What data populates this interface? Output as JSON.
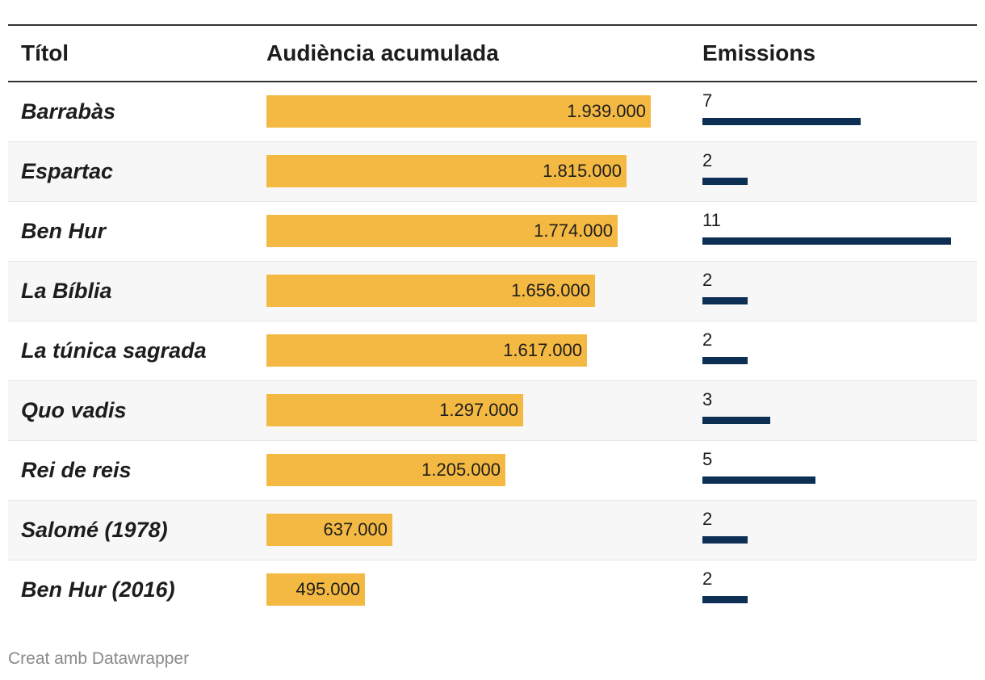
{
  "table": {
    "headers": {
      "title": "Títol",
      "audience": "Audiència acumulada",
      "broadcasts": "Emissions"
    },
    "audience_max": 1939000,
    "broadcasts_max": 11
  },
  "chart_data": {
    "type": "table",
    "columns": [
      "Títol",
      "Audiència acumulada",
      "Emissions"
    ],
    "rows": [
      {
        "title": "Barrabàs",
        "audience": 1939000,
        "audience_label": "1.939.000",
        "broadcasts": 7,
        "broadcasts_label": "7"
      },
      {
        "title": "Espartac",
        "audience": 1815000,
        "audience_label": "1.815.000",
        "broadcasts": 2,
        "broadcasts_label": "2"
      },
      {
        "title": "Ben Hur",
        "audience": 1774000,
        "audience_label": "1.774.000",
        "broadcasts": 11,
        "broadcasts_label": "11"
      },
      {
        "title": "La Bíblia",
        "audience": 1656000,
        "audience_label": "1.656.000",
        "broadcasts": 2,
        "broadcasts_label": "2"
      },
      {
        "title": "La túnica sagrada",
        "audience": 1617000,
        "audience_label": "1.617.000",
        "broadcasts": 2,
        "broadcasts_label": "2"
      },
      {
        "title": "Quo vadis",
        "audience": 1297000,
        "audience_label": "1.297.000",
        "broadcasts": 3,
        "broadcasts_label": "3"
      },
      {
        "title": "Rei de reis",
        "audience": 1205000,
        "audience_label": "1.205.000",
        "broadcasts": 5,
        "broadcasts_label": "5"
      },
      {
        "title": "Salomé (1978)",
        "audience": 637000,
        "audience_label": "637.000",
        "broadcasts": 2,
        "broadcasts_label": "2"
      },
      {
        "title": "Ben Hur (2016)",
        "audience": 495000,
        "audience_label": "495.000",
        "broadcasts": 2,
        "broadcasts_label": "2"
      }
    ]
  },
  "colors": {
    "audience_bar": "#f4b942",
    "broadcasts_bar": "#0d2f54",
    "rule": "#333333",
    "row_alt": "#f7f7f7"
  },
  "footer": {
    "credit": "Creat amb Datawrapper"
  }
}
